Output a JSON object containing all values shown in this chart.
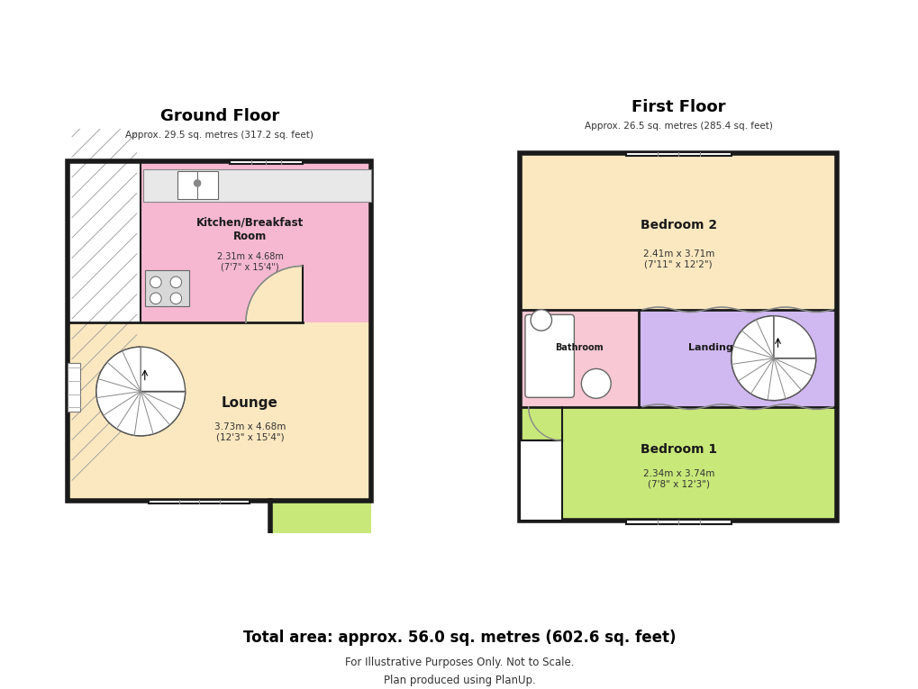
{
  "wall_color": "#1a1a1a",
  "light_gray": "#e8e8e8",
  "mid_gray": "#aaaaaa",
  "colors": {
    "kitchen": "#f5b8d0",
    "lounge": "#fce8c0",
    "porch": "#c8e87a",
    "bedroom2": "#fce8c0",
    "bathroom": "#f8c8d4",
    "landing": "#d0b8f0",
    "bedroom1": "#c8e87a"
  },
  "gf_title": "Ground Floor",
  "gf_subtitle": "Approx. 29.5 sq. metres (317.2 sq. feet)",
  "ff_title": "First Floor",
  "ff_subtitle": "Approx. 26.5 sq. metres (285.4 sq. feet)",
  "kitchen_label": "Kitchen/Breakfast\nRoom",
  "kitchen_sub": "2.31m x 4.68m\n(7'7\" x 15'4\")",
  "lounge_label": "Lounge",
  "lounge_sub": "3.73m x 4.68m\n(12'3\" x 15'4\")",
  "bed2_label": "Bedroom 2",
  "bed2_sub": "2.41m x 3.71m\n(7'11\" x 12'2\")",
  "bath_label": "Bathroom",
  "land_label": "Landing",
  "bed1_label": "Bedroom 1",
  "bed1_sub": "2.34m x 3.74m\n(7'8\" x 12'3\")",
  "footer_total": "Total area: approx. 56.0 sq. metres (602.6 sq. feet)",
  "footer_note1": "For Illustrative Purposes Only. Not to Scale.",
  "footer_note2": "Plan produced using PlanUp."
}
